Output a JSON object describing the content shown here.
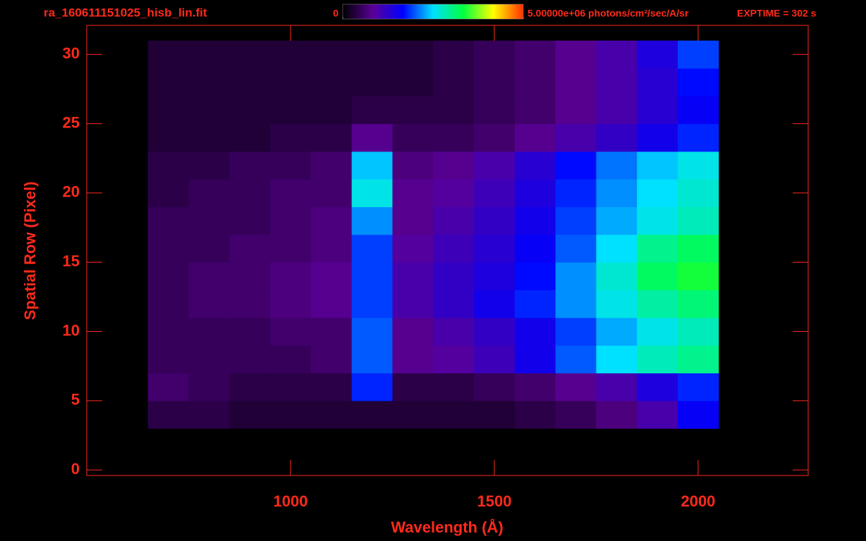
{
  "chart_data": {
    "type": "heatmap",
    "title": "ra_160611151025_hisb_lin.fit",
    "annotation": "EXPTIME = 302 s",
    "x_label": "Wavelength (Å)",
    "y_label": "Spatial Row (Pixel)",
    "xlim": [
      500,
      2270
    ],
    "xticks": [
      1000,
      1500,
      2000
    ],
    "ylim": [
      -0.4,
      32.1
    ],
    "yticks": [
      0,
      5,
      10,
      15,
      20,
      25,
      30
    ],
    "xbins": [
      650,
      750,
      850,
      950,
      1050,
      1150,
      1250,
      1350,
      1450,
      1550,
      1650,
      1750,
      1850,
      1950,
      2050
    ],
    "ybins": [
      3,
      5,
      7,
      9,
      11,
      13,
      15,
      17,
      19,
      21,
      23,
      25,
      27,
      29,
      31
    ],
    "z": [
      [
        400000.0,
        400000.0,
        300000.0,
        300000.0,
        300000.0,
        300000.0,
        300000.0,
        300000.0,
        300000.0,
        400000.0,
        500000.0,
        700000.0,
        1000000.0,
        1600000.0
      ],
      [
        600000.0,
        500000.0,
        400000.0,
        400000.0,
        400000.0,
        1800000.0,
        400000.0,
        400000.0,
        500000.0,
        600000.0,
        800000.0,
        1000000.0,
        1400000.0,
        1800000.0
      ],
      [
        500000.0,
        500000.0,
        500000.0,
        500000.0,
        600000.0,
        2000000.0,
        800000.0,
        900000.0,
        1100000.0,
        1500000.0,
        2000000.0,
        2500000.0,
        2800000.0,
        3000000.0
      ],
      [
        500000.0,
        500000.0,
        500000.0,
        600000.0,
        600000.0,
        2000000.0,
        800000.0,
        1000000.0,
        1200000.0,
        1500000.0,
        1900000.0,
        2300000.0,
        2600000.0,
        2800000.0
      ],
      [
        500000.0,
        600000.0,
        600000.0,
        700000.0,
        800000.0,
        1900000.0,
        1000000.0,
        1200000.0,
        1500000.0,
        1800000.0,
        2200000.0,
        2600000.0,
        2900000.0,
        3100000.0
      ],
      [
        500000.0,
        600000.0,
        600000.0,
        700000.0,
        800000.0,
        1900000.0,
        1000000.0,
        1200000.0,
        1400000.0,
        1700000.0,
        2200000.0,
        2700000.0,
        3200000.0,
        3400000.0
      ],
      [
        500000.0,
        500000.0,
        600000.0,
        600000.0,
        700000.0,
        1900000.0,
        900000.0,
        1100000.0,
        1300000.0,
        1600000.0,
        2000000.0,
        2500000.0,
        3000000.0,
        3200000.0
      ],
      [
        500000.0,
        500000.0,
        500000.0,
        600000.0,
        700000.0,
        2200000.0,
        800000.0,
        1000000.0,
        1200000.0,
        1500000.0,
        1900000.0,
        2300000.0,
        2600000.0,
        2800000.0
      ],
      [
        400000.0,
        500000.0,
        500000.0,
        600000.0,
        600000.0,
        2600000.0,
        800000.0,
        900000.0,
        1100000.0,
        1400000.0,
        1800000.0,
        2200000.0,
        2500000.0,
        2700000.0
      ],
      [
        400000.0,
        400000.0,
        500000.0,
        500000.0,
        600000.0,
        2400000.0,
        700000.0,
        800000.0,
        1000000.0,
        1300000.0,
        1700000.0,
        2100000.0,
        2400000.0,
        2600000.0
      ],
      [
        300000.0,
        300000.0,
        300000.0,
        400000.0,
        400000.0,
        800000.0,
        500000.0,
        500000.0,
        600000.0,
        800000.0,
        1000000.0,
        1200000.0,
        1500000.0,
        1800000.0
      ],
      [
        300000.0,
        300000.0,
        300000.0,
        300000.0,
        300000.0,
        400000.0,
        400000.0,
        400000.0,
        500000.0,
        600000.0,
        800000.0,
        1000000.0,
        1300000.0,
        1600000.0
      ],
      [
        300000.0,
        300000.0,
        300000.0,
        300000.0,
        300000.0,
        300000.0,
        300000.0,
        400000.0,
        500000.0,
        600000.0,
        800000.0,
        1000000.0,
        1300000.0,
        1700000.0
      ],
      [
        300000.0,
        300000.0,
        300000.0,
        300000.0,
        300000.0,
        300000.0,
        300000.0,
        400000.0,
        500000.0,
        600000.0,
        800000.0,
        1000000.0,
        1400000.0,
        1900000.0
      ]
    ],
    "zlim": [
      0,
      5000000
    ],
    "zticks": [
      0,
      {
        "value": 5000000,
        "label": "5.00000e+06 photons/cm²/sec/A/sr"
      }
    ],
    "colormap": [
      "#000000",
      "#5a0096",
      "#0000ff",
      "#00e0ff",
      "#00ff40",
      "#ffff00",
      "#ff3000"
    ],
    "axis_color": "#ff2a1a"
  }
}
